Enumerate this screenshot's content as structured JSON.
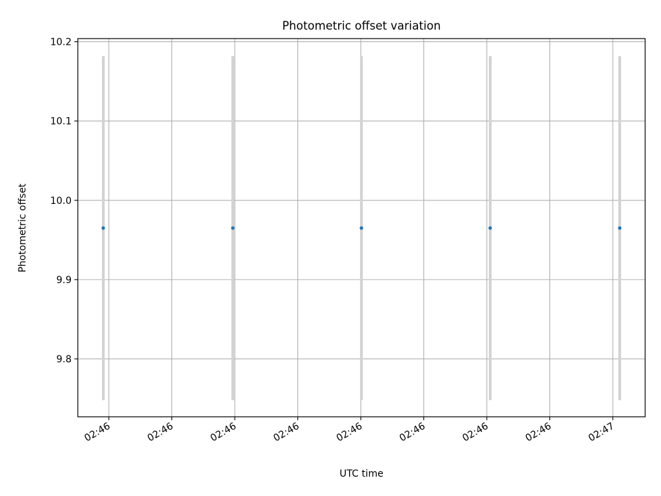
{
  "chart_data": {
    "type": "scatter",
    "title": "Photometric offset variation",
    "xlabel": "UTC time",
    "ylabel": "Photometric offset",
    "x_unit": "seconds after 02:46:00",
    "x": [
      19.56,
      29.84,
      40.05,
      50.27,
      60.55
    ],
    "y": [
      9.965,
      9.965,
      9.965,
      9.965,
      9.965
    ],
    "yerr": [
      0.217,
      0.217,
      0.217,
      0.217,
      0.217
    ],
    "xlim": [
      17.54,
      62.57
    ],
    "ylim": [
      9.727,
      10.204
    ],
    "x_ticks": [
      20,
      25,
      30,
      35,
      40,
      45,
      50,
      55,
      60
    ],
    "x_tick_labels": [
      "02:46",
      "02:46",
      "02:46",
      "02:46",
      "02:46",
      "02:46",
      "02:46",
      "02:46",
      "02:47"
    ],
    "y_ticks": [
      9.8,
      9.9,
      10.0,
      10.1,
      10.2
    ],
    "y_tick_labels": [
      "9.8",
      "9.9",
      "10.0",
      "10.1",
      "10.2"
    ],
    "grid": true,
    "colors": {
      "marker": "#1f77b4",
      "errorbar": "#d3d3d3",
      "grid": "#b0b0b0"
    }
  }
}
